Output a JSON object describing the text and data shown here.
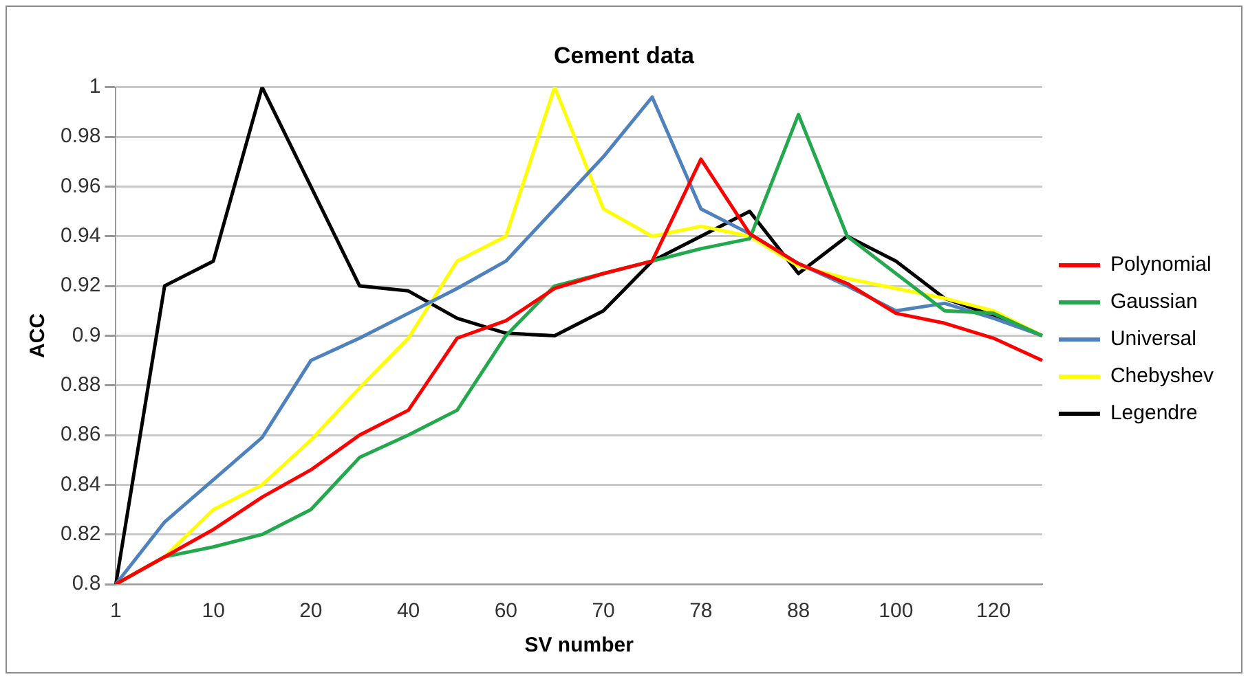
{
  "chart_data": {
    "type": "line",
    "title": "Cement data",
    "xlabel": "SV number",
    "ylabel": "ACC",
    "categories": [
      "1",
      null,
      "10",
      null,
      "20",
      null,
      "40",
      null,
      "60",
      null,
      "70",
      null,
      "78",
      null,
      "88",
      null,
      "100",
      null,
      "120",
      null
    ],
    "series": [
      {
        "name": "Polynomial",
        "color": "#ff0000",
        "values": [
          0.8,
          0.811,
          0.822,
          0.835,
          0.846,
          0.86,
          0.87,
          0.899,
          0.906,
          0.919,
          0.925,
          0.93,
          0.971,
          0.941,
          0.929,
          0.921,
          0.909,
          0.905,
          0.899,
          0.89
        ]
      },
      {
        "name": "Gaussian",
        "color": "#23a84e",
        "values": [
          0.8,
          0.811,
          0.815,
          0.82,
          0.83,
          0.851,
          0.86,
          0.87,
          0.9,
          0.92,
          0.925,
          0.93,
          0.935,
          0.939,
          0.989,
          0.94,
          0.925,
          0.91,
          0.909,
          0.9
        ]
      },
      {
        "name": "Universal",
        "color": "#4f81bd",
        "values": [
          0.8,
          0.825,
          0.842,
          0.859,
          0.89,
          0.899,
          0.909,
          0.919,
          0.93,
          0.951,
          0.972,
          0.996,
          0.951,
          0.941,
          0.929,
          0.92,
          0.91,
          0.913,
          0.907,
          0.9
        ]
      },
      {
        "name": "Chebyshev",
        "color": "#ffff00",
        "values": [
          0.8,
          0.811,
          0.83,
          0.84,
          0.858,
          0.879,
          0.899,
          0.93,
          0.94,
          1.0,
          0.951,
          0.94,
          0.944,
          0.94,
          0.928,
          0.923,
          0.919,
          0.915,
          0.91,
          0.9
        ]
      },
      {
        "name": "Legendre",
        "color": "#000000",
        "values": [
          0.8,
          0.92,
          0.93,
          1.0,
          0.96,
          0.92,
          0.918,
          0.907,
          0.901,
          0.9,
          0.91,
          0.93,
          0.94,
          0.95,
          0.925,
          0.94,
          0.93,
          0.915,
          0.908,
          0.9
        ]
      }
    ],
    "ylim": [
      0.8,
      1
    ],
    "yticks": [
      0.8,
      0.82,
      0.84,
      0.86,
      0.88,
      0.9,
      0.92,
      0.94,
      0.96,
      0.98,
      1
    ],
    "grid": "y",
    "legend": "right",
    "marker": "none",
    "line_style": "solid"
  }
}
